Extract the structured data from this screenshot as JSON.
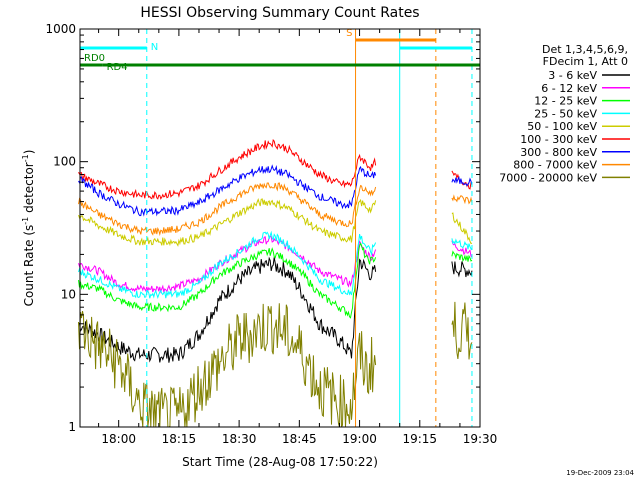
{
  "chart_data": {
    "type": "line",
    "title": "HESSI Observing Summary Count Rates",
    "xlabel": "Start Time (28-Aug-08 17:50:22)",
    "ylabel_main": "Count Rate (s",
    "ylabel_sup1": "-1",
    "ylabel_mid": " detector",
    "ylabel_sup2": "-1",
    "ylabel_end": ")",
    "yscale": "log",
    "ylim": [
      1,
      1000
    ],
    "xlim": [
      "17:50:22",
      "19:30:00"
    ],
    "x_ticks": [
      "18:00",
      "18:15",
      "18:30",
      "18:45",
      "19:00",
      "19:15",
      "19:30"
    ],
    "y_ticks": [
      "1",
      "10",
      "100",
      "1000"
    ],
    "footer_date": "19-Dec-2009 23:04",
    "legend": {
      "header": [
        "Det 1,3,4,5,6,9,",
        "FDecim 1, Att 0"
      ],
      "entries": [
        {
          "label": "3 - 6 keV",
          "color": "#000000"
        },
        {
          "label": "6 - 12 keV",
          "color": "#ff00ff"
        },
        {
          "label": "12 - 25 keV",
          "color": "#00ff00"
        },
        {
          "label": "25 - 50 keV",
          "color": "#00ffff"
        },
        {
          "label": "50 - 100 keV",
          "color": "#cccc00"
        },
        {
          "label": "100 - 300 keV",
          "color": "#ff0000"
        },
        {
          "label": "300 - 800 keV",
          "color": "#0000ff"
        },
        {
          "label": "800 - 7000 keV",
          "color": "#ff8800"
        },
        {
          "label": "7000 - 20000 keV",
          "color": "#808000"
        }
      ]
    },
    "flags": [
      {
        "label": "N",
        "color": "#00ffff",
        "intervals": [
          [
            "17:50:22",
            "18:07:00"
          ],
          [
            "19:10:00",
            "19:28:00"
          ]
        ]
      },
      {
        "label": "S",
        "color": "#ff8800",
        "intervals": [
          [
            "18:59:00",
            "19:19:00"
          ]
        ]
      },
      {
        "label": "RD0",
        "color": "#008000",
        "intervals": [
          [
            "17:50:22",
            "17:56:00"
          ]
        ]
      },
      {
        "label": "RD4",
        "color": "#008000",
        "intervals": [
          [
            "17:56:00",
            "19:20:00"
          ],
          [
            "19:20:00",
            "19:30:00"
          ]
        ]
      }
    ],
    "vlines": [
      {
        "time": "17:50:22",
        "color": "#00ffff",
        "style": "solid"
      },
      {
        "time": "18:07:00",
        "color": "#00ffff",
        "style": "dashed"
      },
      {
        "time": "18:59:00",
        "color": "#ff8800",
        "style": "solid"
      },
      {
        "time": "19:10:00",
        "color": "#00ffff",
        "style": "solid"
      },
      {
        "time": "19:19:00",
        "color": "#ff8800",
        "style": "dashed"
      },
      {
        "time": "19:28:00",
        "color": "#00ffff",
        "style": "dashed"
      }
    ],
    "gaps": [
      [
        "19:04:00",
        "19:23:00"
      ]
    ],
    "series": [
      {
        "name": "3 - 6 keV",
        "color": "#000000",
        "x": [
          "17:50",
          "17:55",
          "18:00",
          "18:05",
          "18:10",
          "18:15",
          "18:20",
          "18:25",
          "18:30",
          "18:35",
          "18:38",
          "18:42",
          "18:46",
          "18:50",
          "18:55",
          "18:58",
          "19:00",
          "19:02",
          "19:03",
          "19:04",
          "19:23",
          "19:28"
        ],
        "y": [
          6,
          5,
          4,
          3.5,
          3.5,
          3.5,
          5,
          9,
          13,
          16,
          17,
          15,
          10,
          6,
          4.5,
          3.5,
          18,
          15,
          14,
          15,
          16,
          15
        ]
      },
      {
        "name": "6 - 12 keV",
        "color": "#ff00ff",
        "x": [
          "17:50",
          "17:55",
          "18:00",
          "18:05",
          "18:10",
          "18:15",
          "18:20",
          "18:25",
          "18:30",
          "18:35",
          "18:38",
          "18:42",
          "18:46",
          "18:50",
          "18:55",
          "18:58",
          "19:00",
          "19:02",
          "19:03",
          "19:04",
          "19:23",
          "19:28"
        ],
        "y": [
          17,
          15,
          12,
          11,
          11,
          11.5,
          13,
          17,
          21,
          25,
          26,
          23,
          19,
          15,
          13,
          12,
          24,
          20,
          19,
          22,
          24,
          20
        ]
      },
      {
        "name": "12 - 25 keV",
        "color": "#00ff00",
        "x": [
          "17:50",
          "17:55",
          "18:00",
          "18:05",
          "18:10",
          "18:15",
          "18:20",
          "18:25",
          "18:30",
          "18:35",
          "18:38",
          "18:42",
          "18:46",
          "18:50",
          "18:55",
          "18:58",
          "19:00",
          "19:02",
          "19:03",
          "19:04",
          "19:23",
          "19:28"
        ],
        "y": [
          12,
          11,
          9,
          8,
          8,
          8,
          10,
          14,
          17,
          20,
          21,
          18,
          14,
          10,
          8,
          7,
          24,
          18,
          18,
          19,
          20,
          18
        ]
      },
      {
        "name": "25 - 50 keV",
        "color": "#00ffff",
        "x": [
          "17:50",
          "17:55",
          "18:00",
          "18:05",
          "18:10",
          "18:15",
          "18:20",
          "18:25",
          "18:30",
          "18:35",
          "18:38",
          "18:42",
          "18:46",
          "18:50",
          "18:55",
          "18:58",
          "19:00",
          "19:02",
          "19:03",
          "19:04",
          "19:23",
          "19:28"
        ],
        "y": [
          15,
          13,
          11,
          10,
          10,
          10,
          12,
          17,
          21,
          27,
          28,
          24,
          18,
          13,
          11,
          10,
          28,
          22,
          21,
          25,
          26,
          22
        ]
      },
      {
        "name": "50 - 100 keV",
        "color": "#cccc00",
        "x": [
          "17:50",
          "17:55",
          "18:00",
          "18:05",
          "18:10",
          "18:15",
          "18:20",
          "18:25",
          "18:30",
          "18:35",
          "18:38",
          "18:42",
          "18:46",
          "18:50",
          "18:55",
          "18:58",
          "19:00",
          "19:02",
          "19:03",
          "19:04",
          "19:23",
          "19:28"
        ],
        "y": [
          40,
          33,
          28,
          25,
          25,
          25,
          27,
          33,
          41,
          49,
          50,
          45,
          37,
          30,
          27,
          26,
          50,
          45,
          43,
          50,
          40,
          25
        ]
      },
      {
        "name": "100 - 300 keV",
        "color": "#ff0000",
        "x": [
          "17:50",
          "17:55",
          "18:00",
          "18:05",
          "18:10",
          "18:15",
          "18:20",
          "18:25",
          "18:30",
          "18:35",
          "18:38",
          "18:42",
          "18:46",
          "18:50",
          "18:55",
          "18:58",
          "19:00",
          "19:02",
          "19:03",
          "19:04",
          "19:23",
          "19:28"
        ],
        "y": [
          80,
          68,
          60,
          56,
          56,
          58,
          66,
          85,
          108,
          130,
          140,
          125,
          100,
          80,
          68,
          67,
          110,
          95,
          90,
          100,
          80,
          65
        ]
      },
      {
        "name": "300 - 800 keV",
        "color": "#0000ff",
        "x": [
          "17:50",
          "17:55",
          "18:00",
          "18:05",
          "18:10",
          "18:15",
          "18:20",
          "18:25",
          "18:30",
          "18:35",
          "18:38",
          "18:42",
          "18:46",
          "18:50",
          "18:55",
          "18:58",
          "19:00",
          "19:02",
          "19:03",
          "19:04",
          "19:23",
          "19:28"
        ],
        "y": [
          75,
          58,
          48,
          42,
          42,
          43,
          49,
          61,
          75,
          87,
          88,
          80,
          66,
          55,
          48,
          47,
          88,
          80,
          76,
          82,
          72,
          70
        ]
      },
      {
        "name": "800 - 7000 keV",
        "color": "#ff8800",
        "x": [
          "17:50",
          "17:55",
          "18:00",
          "18:05",
          "18:10",
          "18:15",
          "18:20",
          "18:25",
          "18:30",
          "18:35",
          "18:38",
          "18:42",
          "18:46",
          "18:50",
          "18:55",
          "18:58",
          "19:00",
          "19:02",
          "19:03",
          "19:04",
          "19:23",
          "19:28"
        ],
        "y": [
          50,
          40,
          34,
          30,
          30,
          31,
          35,
          45,
          56,
          66,
          68,
          62,
          50,
          40,
          35,
          34,
          65,
          60,
          57,
          62,
          55,
          50
        ]
      },
      {
        "name": "7000 - 20000 keV",
        "color": "#808000",
        "x": [
          "17:50",
          "17:55",
          "18:00",
          "18:05",
          "18:10",
          "18:15",
          "18:20",
          "18:25",
          "18:30",
          "18:35",
          "18:38",
          "18:42",
          "18:46",
          "18:50",
          "18:55",
          "18:58",
          "19:00",
          "19:02",
          "19:03",
          "19:04",
          "19:23",
          "19:28"
        ],
        "y": [
          6,
          4,
          3,
          1.5,
          1.2,
          1.2,
          2,
          3,
          4.5,
          5.5,
          6,
          5,
          3.5,
          2,
          1.5,
          1.5,
          3.5,
          2.5,
          3,
          3,
          5.5,
          5
        ]
      }
    ]
  }
}
